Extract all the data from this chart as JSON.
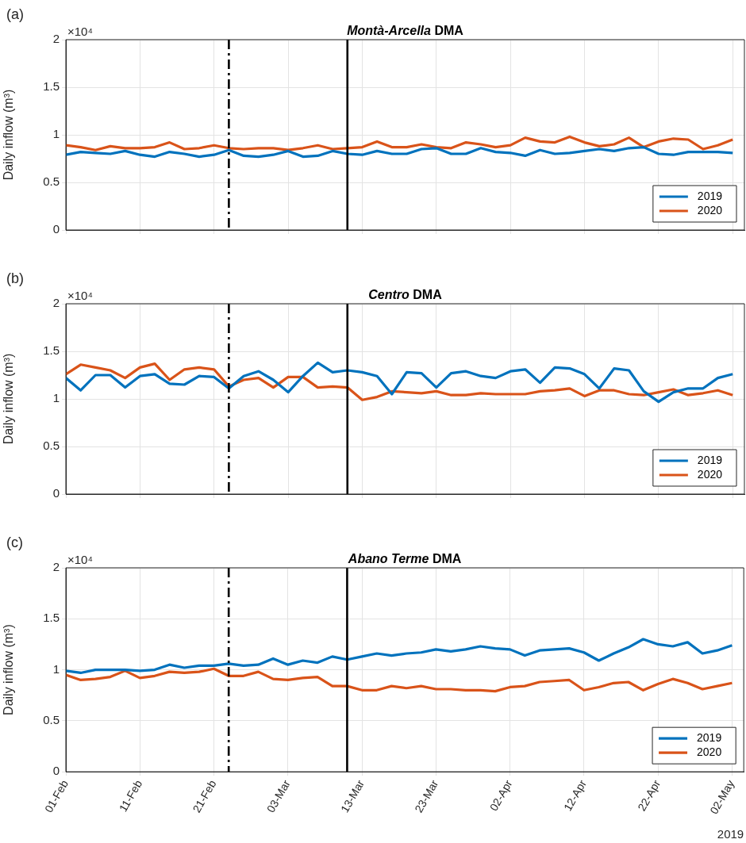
{
  "chart_data": [
    {
      "type": "line",
      "title": "Montà-Arcella DMA",
      "ylabel": "Daily inflow (m³)",
      "annotations": [
        "(a)",
        "×10⁴"
      ],
      "x": [
        "2019-02-01",
        "2019-02-03",
        "2019-02-05",
        "2019-02-07",
        "2019-02-09",
        "2019-02-11",
        "2019-02-13",
        "2019-02-15",
        "2019-02-17",
        "2019-02-19",
        "2019-02-21",
        "2019-02-23",
        "2019-02-25",
        "2019-02-27",
        "2019-03-01",
        "2019-03-03",
        "2019-03-05",
        "2019-03-07",
        "2019-03-09",
        "2019-03-11",
        "2019-03-13",
        "2019-03-15",
        "2019-03-17",
        "2019-03-19",
        "2019-03-21",
        "2019-03-23",
        "2019-03-25",
        "2019-03-27",
        "2019-03-29",
        "2019-03-31",
        "2019-04-02",
        "2019-04-04",
        "2019-04-06",
        "2019-04-08",
        "2019-04-10",
        "2019-04-12",
        "2019-04-14",
        "2019-04-16",
        "2019-04-18",
        "2019-04-20",
        "2019-04-22",
        "2019-04-24",
        "2019-04-26",
        "2019-04-28",
        "2019-04-30",
        "2019-05-02"
      ],
      "series": [
        {
          "name": "2019",
          "color": "#0072bd",
          "values": [
            0.79,
            0.82,
            0.81,
            0.8,
            0.83,
            0.79,
            0.77,
            0.82,
            0.8,
            0.77,
            0.79,
            0.84,
            0.78,
            0.77,
            0.79,
            0.83,
            0.77,
            0.78,
            0.83,
            0.8,
            0.79,
            0.83,
            0.8,
            0.8,
            0.85,
            0.86,
            0.8,
            0.8,
            0.86,
            0.82,
            0.81,
            0.78,
            0.84,
            0.8,
            0.81,
            0.83,
            0.85,
            0.83,
            0.86,
            0.87,
            0.8,
            0.79,
            0.82,
            0.82,
            0.82,
            0.81
          ]
        },
        {
          "name": "2020",
          "color": "#d95319",
          "values": [
            0.89,
            0.87,
            0.84,
            0.88,
            0.86,
            0.86,
            0.87,
            0.92,
            0.85,
            0.86,
            0.89,
            0.86,
            0.85,
            0.86,
            0.86,
            0.84,
            0.86,
            0.89,
            0.85,
            0.86,
            0.87,
            0.93,
            0.87,
            0.87,
            0.9,
            0.87,
            0.86,
            0.92,
            0.9,
            0.87,
            0.89,
            0.97,
            0.93,
            0.92,
            0.98,
            0.92,
            0.88,
            0.9,
            0.97,
            0.87,
            0.93,
            0.96,
            0.95,
            0.85,
            0.89,
            0.95
          ]
        }
      ],
      "xlim": [
        "2019-02-01",
        "2019-05-03T14:00"
      ],
      "xticks": [
        {
          "value": "2019-02-01",
          "label": null
        },
        {
          "value": "2019-02-11",
          "label": null
        },
        {
          "value": "2019-02-21",
          "label": null
        },
        {
          "value": "2019-03-03",
          "label": null
        },
        {
          "value": "2019-03-13",
          "label": null
        },
        {
          "value": "2019-03-23",
          "label": null
        },
        {
          "value": "2019-04-02",
          "label": null
        },
        {
          "value": "2019-04-12",
          "label": null
        },
        {
          "value": "2019-04-22",
          "label": null
        },
        {
          "value": "2019-05-02",
          "label": null
        }
      ],
      "ylim": [
        0,
        2
      ],
      "yticks": [
        0,
        0.5,
        1,
        1.5,
        2
      ],
      "ref_lines": [
        {
          "axis": "x",
          "value": "2019-02-23",
          "color": "#000000",
          "line_style": "dashed"
        },
        {
          "axis": "x",
          "value": "2019-03-11",
          "color": "#000000",
          "line_style": "solid"
        }
      ],
      "grid": true,
      "legend": "bottom right",
      "tick_labels": "y"
    },
    {
      "type": "line",
      "title": "Centro DMA",
      "ylabel": "Daily inflow (m³)",
      "annotations": [
        "(b)",
        "×10⁴"
      ],
      "x": [
        "2019-02-01",
        "2019-02-03",
        "2019-02-05",
        "2019-02-07",
        "2019-02-09",
        "2019-02-11",
        "2019-02-13",
        "2019-02-15",
        "2019-02-17",
        "2019-02-19",
        "2019-02-21",
        "2019-02-23",
        "2019-02-25",
        "2019-02-27",
        "2019-03-01",
        "2019-03-03",
        "2019-03-05",
        "2019-03-07",
        "2019-03-09",
        "2019-03-11",
        "2019-03-13",
        "2019-03-15",
        "2019-03-17",
        "2019-03-19",
        "2019-03-21",
        "2019-03-23",
        "2019-03-25",
        "2019-03-27",
        "2019-03-29",
        "2019-03-31",
        "2019-04-02",
        "2019-04-04",
        "2019-04-06",
        "2019-04-08",
        "2019-04-10",
        "2019-04-12",
        "2019-04-14",
        "2019-04-16",
        "2019-04-18",
        "2019-04-20",
        "2019-04-22",
        "2019-04-24",
        "2019-04-26",
        "2019-04-28",
        "2019-04-30",
        "2019-05-02"
      ],
      "series": [
        {
          "name": "2019",
          "color": "#0072bd",
          "values": [
            1.22,
            1.09,
            1.25,
            1.25,
            1.12,
            1.24,
            1.26,
            1.16,
            1.15,
            1.24,
            1.23,
            1.11,
            1.24,
            1.29,
            1.2,
            1.07,
            1.24,
            1.38,
            1.28,
            1.3,
            1.28,
            1.24,
            1.05,
            1.28,
            1.27,
            1.12,
            1.27,
            1.29,
            1.24,
            1.22,
            1.29,
            1.31,
            1.17,
            1.33,
            1.32,
            1.26,
            1.11,
            1.32,
            1.3,
            1.08,
            0.97,
            1.07,
            1.11,
            1.11,
            1.22,
            1.26
          ]
        },
        {
          "name": "2020",
          "color": "#d95319",
          "values": [
            1.26,
            1.36,
            1.33,
            1.3,
            1.22,
            1.33,
            1.37,
            1.2,
            1.31,
            1.33,
            1.31,
            1.13,
            1.2,
            1.22,
            1.12,
            1.23,
            1.23,
            1.12,
            1.13,
            1.12,
            0.99,
            1.02,
            1.08,
            1.07,
            1.06,
            1.08,
            1.04,
            1.04,
            1.06,
            1.05,
            1.05,
            1.05,
            1.08,
            1.09,
            1.11,
            1.03,
            1.09,
            1.09,
            1.05,
            1.04,
            1.07,
            1.1,
            1.04,
            1.06,
            1.09,
            1.04
          ]
        }
      ],
      "xlim": [
        "2019-02-01",
        "2019-05-03T14:00"
      ],
      "xticks": [
        {
          "value": "2019-02-01",
          "label": null
        },
        {
          "value": "2019-02-11",
          "label": null
        },
        {
          "value": "2019-02-21",
          "label": null
        },
        {
          "value": "2019-03-03",
          "label": null
        },
        {
          "value": "2019-03-13",
          "label": null
        },
        {
          "value": "2019-03-23",
          "label": null
        },
        {
          "value": "2019-04-02",
          "label": null
        },
        {
          "value": "2019-04-12",
          "label": null
        },
        {
          "value": "2019-04-22",
          "label": null
        },
        {
          "value": "2019-05-02",
          "label": null
        }
      ],
      "ylim": [
        0,
        2
      ],
      "yticks": [
        0,
        0.5,
        1,
        1.5,
        2
      ],
      "ref_lines": [
        {
          "axis": "x",
          "value": "2019-02-23",
          "color": "#000000",
          "line_style": "dashed"
        },
        {
          "axis": "x",
          "value": "2019-03-11",
          "color": "#000000",
          "line_style": "solid"
        }
      ],
      "grid": true,
      "legend": "bottom right",
      "tick_labels": "y"
    },
    {
      "type": "line",
      "title": "Abano Terme DMA",
      "ylabel": "Daily inflow (m³)",
      "annotations": [
        "(c)",
        "×10⁴",
        "2019"
      ],
      "x": [
        "2019-02-01",
        "2019-02-03",
        "2019-02-05",
        "2019-02-07",
        "2019-02-09",
        "2019-02-11",
        "2019-02-13",
        "2019-02-15",
        "2019-02-17",
        "2019-02-19",
        "2019-02-21",
        "2019-02-23",
        "2019-02-25",
        "2019-02-27",
        "2019-03-01",
        "2019-03-03",
        "2019-03-05",
        "2019-03-07",
        "2019-03-09",
        "2019-03-11",
        "2019-03-13",
        "2019-03-15",
        "2019-03-17",
        "2019-03-19",
        "2019-03-21",
        "2019-03-23",
        "2019-03-25",
        "2019-03-27",
        "2019-03-29",
        "2019-03-31",
        "2019-04-02",
        "2019-04-04",
        "2019-04-06",
        "2019-04-08",
        "2019-04-10",
        "2019-04-12",
        "2019-04-14",
        "2019-04-16",
        "2019-04-18",
        "2019-04-20",
        "2019-04-22",
        "2019-04-24",
        "2019-04-26",
        "2019-04-28",
        "2019-04-30",
        "2019-05-02"
      ],
      "series": [
        {
          "name": "2019",
          "color": "#0072bd",
          "values": [
            0.99,
            0.97,
            1.0,
            1.0,
            1.0,
            0.99,
            1.0,
            1.05,
            1.02,
            1.04,
            1.04,
            1.06,
            1.04,
            1.05,
            1.11,
            1.05,
            1.09,
            1.07,
            1.13,
            1.1,
            1.13,
            1.16,
            1.14,
            1.16,
            1.17,
            1.2,
            1.18,
            1.2,
            1.23,
            1.21,
            1.2,
            1.14,
            1.19,
            1.2,
            1.21,
            1.17,
            1.09,
            1.16,
            1.22,
            1.3,
            1.25,
            1.23,
            1.27,
            1.16,
            1.19,
            1.24
          ]
        },
        {
          "name": "2020",
          "color": "#d95319",
          "values": [
            0.95,
            0.9,
            0.91,
            0.93,
            0.99,
            0.92,
            0.94,
            0.98,
            0.97,
            0.98,
            1.01,
            0.94,
            0.94,
            0.98,
            0.91,
            0.9,
            0.92,
            0.93,
            0.84,
            0.84,
            0.8,
            0.8,
            0.84,
            0.82,
            0.84,
            0.81,
            0.81,
            0.8,
            0.8,
            0.79,
            0.83,
            0.84,
            0.88,
            0.89,
            0.9,
            0.8,
            0.83,
            0.87,
            0.88,
            0.8,
            0.86,
            0.91,
            0.87,
            0.81,
            0.84,
            0.87
          ]
        }
      ],
      "xlim": [
        "2019-02-01",
        "2019-05-03T14:00"
      ],
      "xticks": [
        {
          "value": "2019-02-01",
          "label": "01-Feb"
        },
        {
          "value": "2019-02-11",
          "label": "11-Feb"
        },
        {
          "value": "2019-02-21",
          "label": "21-Feb"
        },
        {
          "value": "2019-03-03",
          "label": "03-Mar"
        },
        {
          "value": "2019-03-13",
          "label": "13-Mar"
        },
        {
          "value": "2019-03-23",
          "label": "23-Mar"
        },
        {
          "value": "2019-04-02",
          "label": "02-Apr"
        },
        {
          "value": "2019-04-12",
          "label": "12-Apr"
        },
        {
          "value": "2019-04-22",
          "label": "22-Apr"
        },
        {
          "value": "2019-05-02",
          "label": "02-May"
        }
      ],
      "ylim": [
        0,
        2
      ],
      "yticks": [
        0,
        0.5,
        1,
        1.5,
        2
      ],
      "ref_lines": [
        {
          "axis": "x",
          "value": "2019-02-23",
          "color": "#000000",
          "line_style": "dashed"
        },
        {
          "axis": "x",
          "value": "2019-03-11",
          "color": "#000000",
          "line_style": "solid"
        }
      ],
      "grid": true,
      "legend": "bottom right"
    }
  ]
}
